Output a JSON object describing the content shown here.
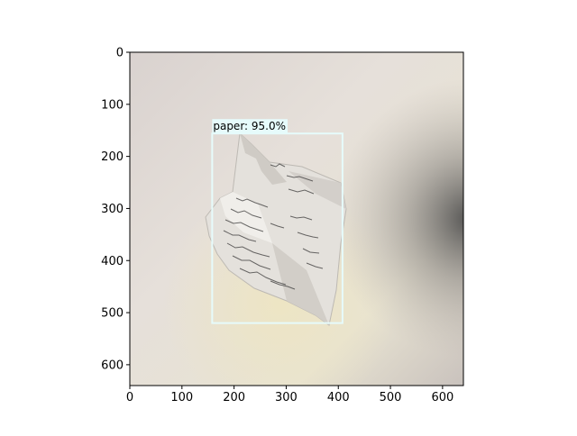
{
  "chart_data": {
    "type": "image-with-detections",
    "image": {
      "width": 640,
      "height": 640
    },
    "xlim": [
      0,
      640
    ],
    "ylim": [
      640,
      0
    ],
    "x_ticks": [
      0,
      100,
      200,
      300,
      400,
      500,
      600
    ],
    "y_ticks": [
      0,
      100,
      200,
      300,
      400,
      500,
      600
    ],
    "grid": false,
    "detections": [
      {
        "label": "paper: 95.0%",
        "class": "paper",
        "score": 0.95,
        "box_xyxy": [
          158,
          156,
          408,
          520
        ],
        "color": "#e6fbfb"
      }
    ]
  }
}
